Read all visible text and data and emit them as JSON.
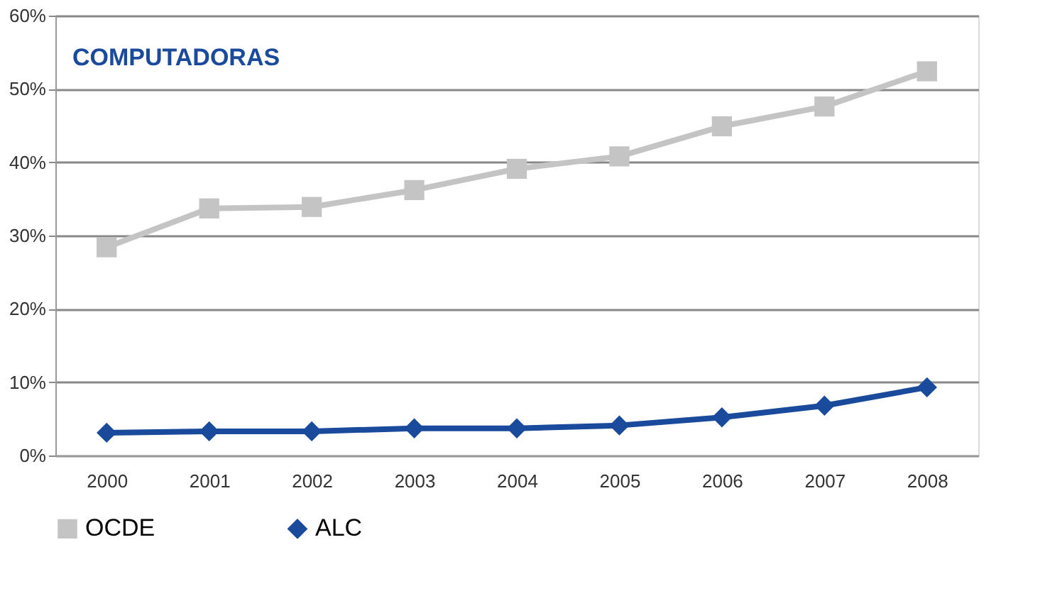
{
  "chart_data": {
    "type": "line",
    "title": "COMPUTADORAS",
    "categories": [
      "2000",
      "2001",
      "2002",
      "2003",
      "2004",
      "2005",
      "2006",
      "2007",
      "2008"
    ],
    "series": [
      {
        "name": "OCDE",
        "color": "#c4c4c4",
        "marker": "square",
        "values": [
          28.4,
          33.7,
          33.9,
          36.2,
          39.1,
          40.8,
          44.9,
          47.6,
          52.4
        ]
      },
      {
        "name": "ALC",
        "color": "#1a4a9c",
        "marker": "diamond",
        "values": [
          3.1,
          3.3,
          3.3,
          3.7,
          3.7,
          4.1,
          5.2,
          6.8,
          9.3
        ]
      }
    ],
    "ylim": [
      0,
      60
    ],
    "yticks": [
      {
        "value": 0,
        "label": "0%"
      },
      {
        "value": 10,
        "label": "10%"
      },
      {
        "value": 20,
        "label": "20%"
      },
      {
        "value": 30,
        "label": "30%"
      },
      {
        "value": 40,
        "label": "40%"
      },
      {
        "value": 50,
        "label": "50%"
      },
      {
        "value": 60,
        "label": "60%"
      }
    ],
    "grid": "y",
    "legend": "bottom",
    "line_style": "solid"
  }
}
